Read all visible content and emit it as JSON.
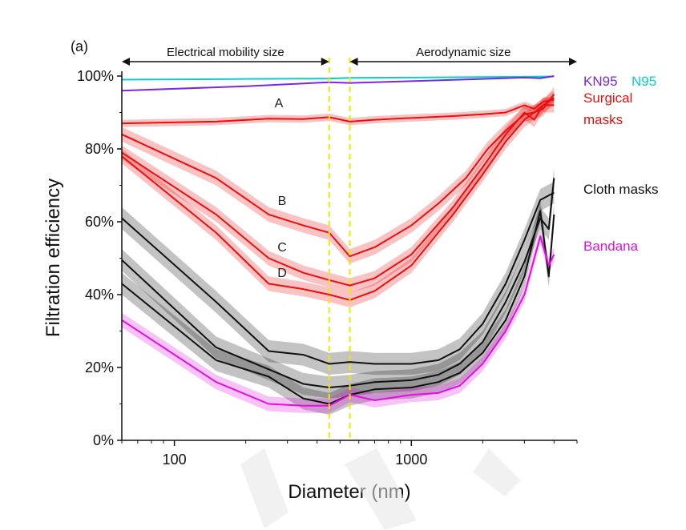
{
  "chart_data": {
    "type": "line",
    "panel_label": "(a)",
    "title": "",
    "xlabel": "Diameter (nm)",
    "ylabel": "Filtration efficiency",
    "xscale": "log",
    "xlim": [
      60,
      5000
    ],
    "ylim": [
      0,
      100
    ],
    "x_ticks": [
      100,
      1000
    ],
    "x_tick_labels": [
      "100",
      "1000"
    ],
    "y_ticks": [
      0,
      20,
      40,
      60,
      80,
      100
    ],
    "y_tick_labels": [
      "0%",
      "20%",
      "40%",
      "60%",
      "80%",
      "100%"
    ],
    "regions": [
      {
        "label": "Electrical mobility size",
        "from": 60,
        "to": 450
      },
      {
        "label": "Aerodynamic size",
        "from": 550,
        "to": 5000
      }
    ],
    "dividers": [
      450,
      550
    ],
    "series": [
      {
        "name": "N95",
        "group": "N95",
        "color": "#00d0d0",
        "x": [
          60,
          200,
          450,
          550,
          1000,
          3000,
          4000
        ],
        "y": [
          99,
          99.2,
          99.3,
          99.5,
          99.6,
          99.8,
          99.9
        ]
      },
      {
        "name": "KN95",
        "group": "KN95",
        "color": "#7a28e0",
        "x": [
          60,
          200,
          450,
          550,
          1000,
          2000,
          3000,
          3500,
          4000
        ],
        "y": [
          96,
          97.2,
          98.3,
          98.1,
          98.6,
          99.2,
          99.6,
          99.4,
          100
        ]
      },
      {
        "name": "Surgical mask A",
        "group": "Surgical masks",
        "label": "A",
        "color": "#e81010",
        "x": [
          60,
          150,
          250,
          350,
          450,
          550,
          700,
          1000,
          1500,
          2000,
          2500,
          3000,
          3300,
          3600,
          4000
        ],
        "y": [
          87,
          87.5,
          88.3,
          88.2,
          88.7,
          87.5,
          88,
          88.5,
          89,
          89.5,
          90,
          92,
          91,
          93,
          93.5
        ],
        "band": 1
      },
      {
        "name": "Surgical mask B",
        "group": "Surgical masks",
        "label": "B",
        "color": "#e81010",
        "x": [
          60,
          150,
          250,
          350,
          450,
          550,
          700,
          1000,
          1300,
          1700,
          2100,
          2500,
          3000,
          3300,
          3600,
          4000
        ],
        "y": [
          84,
          72,
          62,
          59,
          57,
          50.5,
          53,
          59,
          65,
          72,
          80,
          85,
          89.5,
          90,
          91,
          95
        ],
        "band": 2
      },
      {
        "name": "Surgical mask C",
        "group": "Surgical masks",
        "label": "C",
        "color": "#e81010",
        "x": [
          60,
          150,
          250,
          350,
          450,
          550,
          700,
          1000,
          1500,
          2000,
          2500,
          3000,
          3300,
          3600,
          4000
        ],
        "y": [
          79,
          62,
          50,
          46,
          44,
          42.5,
          44.5,
          51,
          64,
          75,
          84,
          90,
          88,
          92,
          92
        ],
        "band": 2
      },
      {
        "name": "Surgical mask D",
        "group": "Surgical masks",
        "label": "D",
        "color": "#e81010",
        "x": [
          60,
          150,
          250,
          350,
          450,
          550,
          700,
          1000,
          1500,
          2000,
          2500,
          3000,
          3300,
          3600,
          4000
        ],
        "y": [
          78,
          57,
          43,
          41.5,
          40,
          38.5,
          41,
          48,
          62,
          73,
          82,
          88,
          90,
          92,
          94
        ],
        "band": 2
      },
      {
        "name": "Cloth mask 1",
        "group": "Cloth masks",
        "color": "#111111",
        "x": [
          60,
          150,
          250,
          350,
          450,
          550,
          700,
          1000,
          1300,
          1600,
          2000,
          2500,
          3000,
          3500,
          4000
        ],
        "y": [
          61,
          38,
          24.5,
          23.5,
          21,
          21.5,
          21,
          21,
          22,
          25,
          32,
          43,
          55,
          66,
          68
        ],
        "band": 3
      },
      {
        "name": "Cloth mask 2",
        "group": "Cloth masks",
        "color": "#111111",
        "x": [
          60,
          150,
          250,
          350,
          450,
          550,
          700,
          1000,
          1300,
          1600,
          2000,
          2500,
          3000,
          3500,
          3800,
          4000
        ],
        "y": [
          49.5,
          25.5,
          19.5,
          15.5,
          14.5,
          15,
          16,
          16.5,
          18,
          21,
          27,
          38,
          49,
          61,
          58,
          72
        ],
        "band": 3
      },
      {
        "name": "Cloth mask 3",
        "group": "Cloth masks",
        "color": "#111111",
        "x": [
          60,
          150,
          250,
          350,
          450,
          550,
          700,
          1000,
          1300,
          1600,
          2000,
          2500,
          3000,
          3500,
          3800,
          4000
        ],
        "y": [
          43,
          22,
          17.5,
          11.5,
          10,
          12.5,
          14,
          14.5,
          16,
          18.5,
          24,
          33,
          45,
          63,
          45,
          62
        ],
        "band": 3
      },
      {
        "name": "Bandana",
        "group": "Bandana",
        "color": "#e010e0",
        "x": [
          60,
          150,
          250,
          350,
          450,
          550,
          700,
          1000,
          1300,
          1600,
          2000,
          2500,
          3000,
          3500,
          3800,
          4000
        ],
        "y": [
          33,
          16,
          10,
          9.5,
          9.5,
          12.5,
          11,
          12.5,
          13,
          15,
          21,
          30,
          40,
          56,
          48,
          51
        ],
        "band": 2
      }
    ],
    "legend": [
      {
        "label": "KN95",
        "color": "#7a28e0"
      },
      {
        "label": "N95",
        "color": "#00d0d0"
      },
      {
        "label": "Surgical",
        "color": "#e81010"
      },
      {
        "label": "masks",
        "color": "#e81010"
      },
      {
        "label": "Cloth masks",
        "color": "#111111"
      },
      {
        "label": "Bandana",
        "color": "#e010e0"
      }
    ],
    "legend_position": "right"
  }
}
